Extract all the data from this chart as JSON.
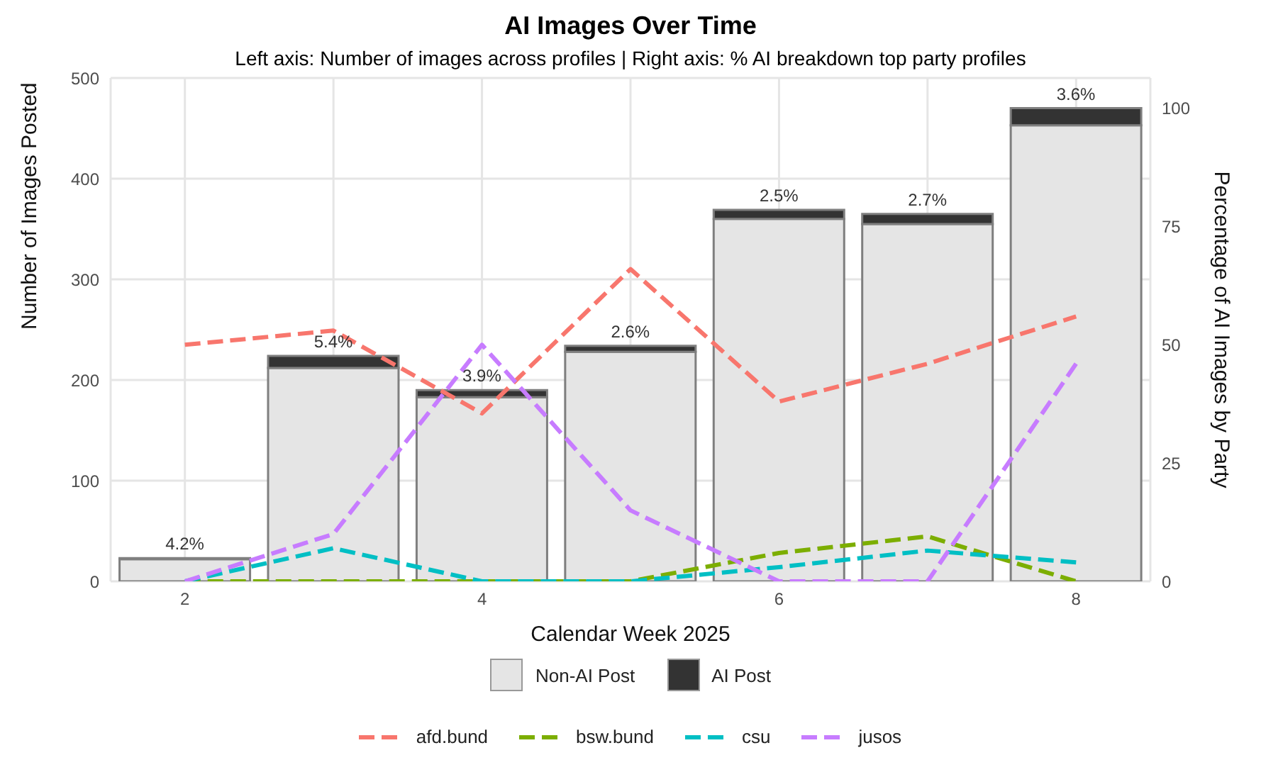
{
  "chart_data": {
    "type": "bar",
    "title": "AI Images Over Time",
    "subtitle": "Left axis: Number of images across profiles | Right axis: % AI breakdown top party profiles",
    "xlabel": "Calendar Week 2025",
    "ylabel": "Number of Images Posted",
    "y2label": "Percentage of AI Images by Party",
    "categories": [
      "2",
      null,
      "4",
      null,
      "6",
      null,
      "8"
    ],
    "stacked": true,
    "ylim": [
      0,
      500
    ],
    "yticks": [
      0,
      100,
      200,
      300,
      400,
      500
    ],
    "y2lim": [
      0,
      106.4
    ],
    "y2ticks": [
      0,
      25,
      50,
      75,
      100
    ],
    "grid": true,
    "legend": "bottom",
    "annotations": [
      "4.2%",
      "5.4%",
      "3.9%",
      "2.6%",
      "2.5%",
      "2.7%",
      "3.6%"
    ],
    "series": [
      {
        "name": "Non-AI Post",
        "color": "#e5e5e5",
        "values": [
          22,
          212,
          183,
          228,
          360,
          355,
          453
        ]
      },
      {
        "name": "AI Post",
        "color": "#333333",
        "values": [
          1,
          12,
          7,
          6,
          9,
          10,
          17
        ]
      },
      {
        "name": "afd.bund",
        "type": "line",
        "axis": "y2",
        "line_style": "dashed",
        "color": "#f8766d",
        "values": [
          50,
          53,
          35.5,
          66,
          38,
          46,
          56
        ]
      },
      {
        "name": "bsw.bund",
        "type": "line",
        "axis": "y2",
        "line_style": "dashed",
        "color": "#7cae00",
        "values": [
          0,
          0,
          0,
          0,
          6,
          9.5,
          0
        ]
      },
      {
        "name": "csu",
        "type": "line",
        "axis": "y2",
        "line_style": "dashed",
        "color": "#00bfc4",
        "values": [
          0,
          7,
          0,
          0,
          3,
          6.5,
          4
        ]
      },
      {
        "name": "jusos",
        "type": "line",
        "axis": "y2",
        "line_style": "dashed",
        "color": "#c77cff",
        "values": [
          0,
          10,
          50,
          15,
          0,
          0,
          46
        ]
      }
    ]
  }
}
